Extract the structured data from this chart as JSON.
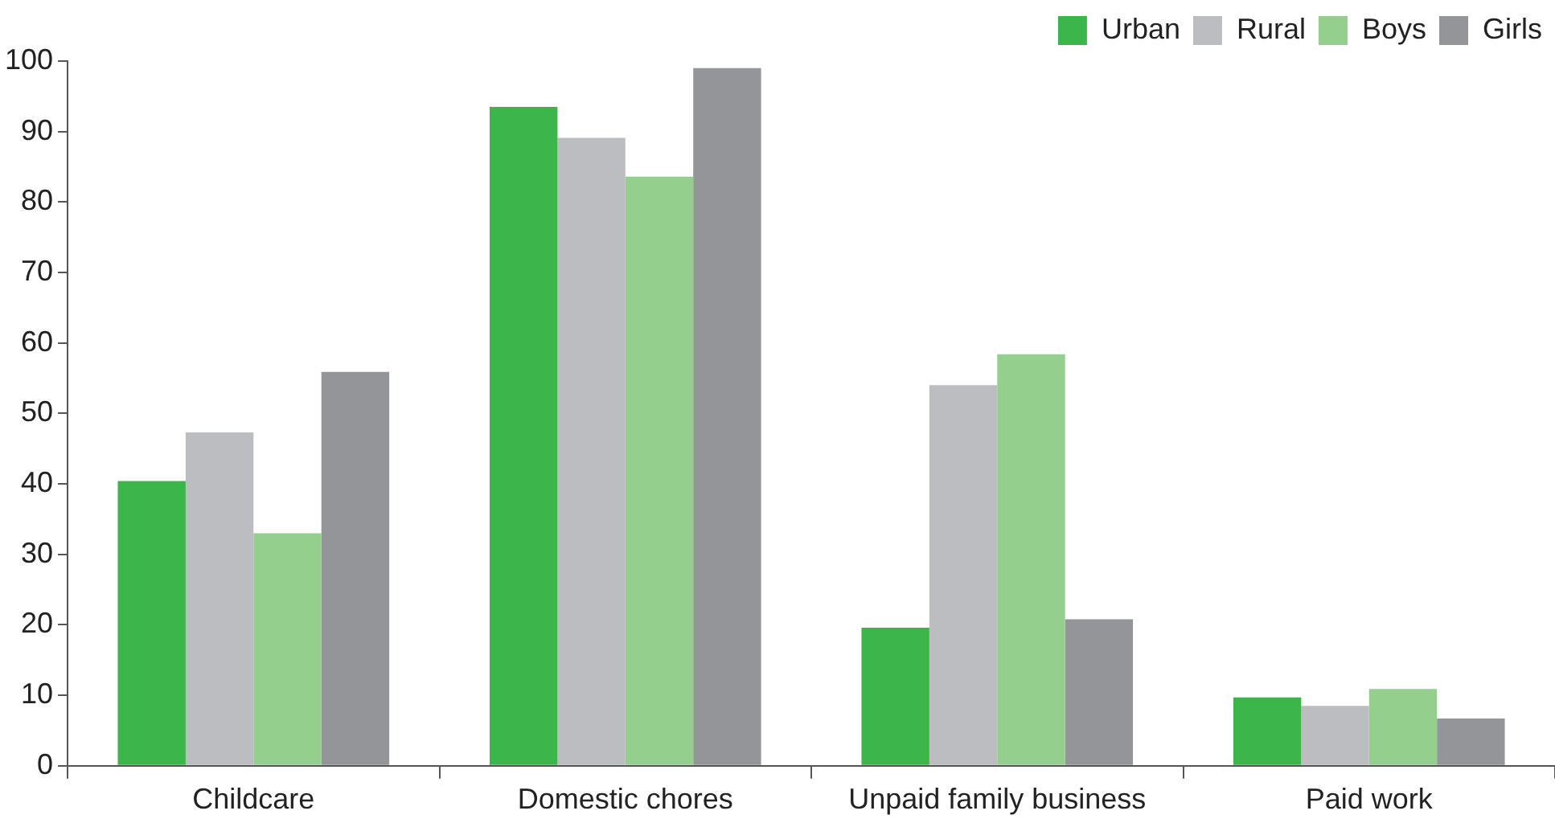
{
  "chart_data": {
    "type": "bar",
    "categories": [
      "Childcare",
      "Domestic chores",
      "Unpaid family business",
      "Paid work"
    ],
    "series": [
      {
        "name": "Urban",
        "color": "#3cb54a",
        "values": [
          40.4,
          93.5,
          19.6,
          9.7
        ]
      },
      {
        "name": "Rural",
        "color": "#bcbdc0",
        "values": [
          47.3,
          89.1,
          54,
          8.5
        ]
      },
      {
        "name": "Boys",
        "color": "#95cf8e",
        "values": [
          33,
          83.6,
          58.4,
          10.9
        ]
      },
      {
        "name": "Girls",
        "color": "#939598",
        "values": [
          55.9,
          99,
          20.8,
          6.7
        ]
      }
    ],
    "ylim": [
      0,
      100
    ],
    "yticks": [
      0,
      10,
      20,
      30,
      40,
      50,
      60,
      70,
      80,
      90,
      100
    ],
    "grid": false,
    "legend": "top right"
  }
}
